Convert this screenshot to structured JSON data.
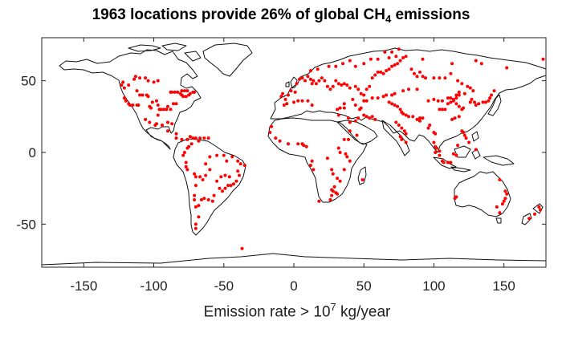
{
  "chart_data": {
    "type": "scatter",
    "title_main": "1963 locations provide 26% of global CH",
    "title_sub": "4",
    "title_tail": " emissions",
    "xlabel_main": "Emission rate > 10",
    "xlabel_sup": "7",
    "xlabel_tail": " kg/year",
    "xlim": [
      -180,
      180
    ],
    "ylim": [
      -80,
      80
    ],
    "xticks": [
      -150,
      -100,
      -50,
      0,
      50,
      100,
      150
    ],
    "yticks": [
      50,
      0,
      -50
    ],
    "grid": false,
    "point_color": "#ff0000",
    "points": [
      [
        -122,
        49
      ],
      [
        -123,
        47
      ],
      [
        -121,
        45
      ],
      [
        -118,
        47
      ],
      [
        -114,
        51
      ],
      [
        -113,
        53
      ],
      [
        -110,
        52
      ],
      [
        -106,
        52
      ],
      [
        -104,
        50
      ],
      [
        -100,
        49
      ],
      [
        -97,
        50
      ],
      [
        -112,
        43
      ],
      [
        -110,
        40
      ],
      [
        -108,
        40
      ],
      [
        -105,
        40
      ],
      [
        -104,
        39
      ],
      [
        -103,
        32
      ],
      [
        -102,
        31
      ],
      [
        -101,
        35
      ],
      [
        -98,
        36
      ],
      [
        -97,
        33
      ],
      [
        -96,
        30
      ],
      [
        -95,
        30
      ],
      [
        -93,
        30
      ],
      [
        -91,
        30
      ],
      [
        -90,
        32
      ],
      [
        -88,
        30
      ],
      [
        -86,
        34
      ],
      [
        -84,
        34
      ],
      [
        -87,
        42
      ],
      [
        -88,
        42
      ],
      [
        -85,
        42
      ],
      [
        -83,
        42
      ],
      [
        -81,
        41
      ],
      [
        -80,
        40
      ],
      [
        -79,
        39
      ],
      [
        -77,
        39
      ],
      [
        -75,
        40
      ],
      [
        -74,
        41
      ],
      [
        -72,
        42
      ],
      [
        -71,
        42
      ],
      [
        -78,
        43
      ],
      [
        -80,
        43
      ],
      [
        -76,
        43
      ],
      [
        -121,
        38
      ],
      [
        -120,
        36
      ],
      [
        -118,
        34
      ],
      [
        -117,
        33
      ],
      [
        -115,
        33
      ],
      [
        -112,
        33
      ],
      [
        -111,
        33
      ],
      [
        -97,
        26
      ],
      [
        -99,
        19
      ],
      [
        -103,
        21
      ],
      [
        -106,
        23
      ],
      [
        -98,
        20
      ],
      [
        -94,
        19
      ],
      [
        -90,
        21
      ],
      [
        -87,
        20
      ],
      [
        -90,
        15
      ],
      [
        -84,
        13
      ],
      [
        -84,
        10
      ],
      [
        -80,
        9
      ],
      [
        -76,
        9
      ],
      [
        -74,
        11
      ],
      [
        -72,
        10
      ],
      [
        -70,
        10
      ],
      [
        -67,
        10
      ],
      [
        -64,
        10
      ],
      [
        -61,
        10
      ],
      [
        -68,
        8
      ],
      [
        -73,
        6
      ],
      [
        -75,
        4
      ],
      [
        -76,
        3
      ],
      [
        -78,
        0
      ],
      [
        -79,
        -2
      ],
      [
        -77,
        -7
      ],
      [
        -77,
        -10
      ],
      [
        -76,
        -12
      ],
      [
        -71,
        -15
      ],
      [
        -70,
        -17
      ],
      [
        -67,
        -17
      ],
      [
        -65,
        -19
      ],
      [
        -63,
        -16
      ],
      [
        -60,
        -12
      ],
      [
        -63,
        -8
      ],
      [
        -60,
        -3
      ],
      [
        -55,
        -2
      ],
      [
        -50,
        -2
      ],
      [
        -48,
        -6
      ],
      [
        -44,
        -3
      ],
      [
        -40,
        -6
      ],
      [
        -38,
        -8
      ],
      [
        -35,
        -9
      ],
      [
        -40,
        -13
      ],
      [
        -39,
        -16
      ],
      [
        -41,
        -20
      ],
      [
        -43,
        -22
      ],
      [
        -45,
        -23
      ],
      [
        -47,
        -23
      ],
      [
        -49,
        -25
      ],
      [
        -51,
        -27
      ],
      [
        -53,
        -25
      ],
      [
        -55,
        -20
      ],
      [
        -52,
        -17
      ],
      [
        -49,
        -16
      ],
      [
        -46,
        -17
      ],
      [
        -57,
        -30
      ],
      [
        -58,
        -34
      ],
      [
        -61,
        -33
      ],
      [
        -64,
        -32
      ],
      [
        -66,
        -33
      ],
      [
        -68,
        -37
      ],
      [
        -70,
        -38
      ],
      [
        -68,
        -45
      ],
      [
        -70,
        -50
      ],
      [
        -71,
        -33
      ],
      [
        -71,
        -30
      ],
      [
        -70,
        -23
      ],
      [
        -70,
        -53
      ],
      [
        -37,
        -67
      ],
      [
        -9,
        39
      ],
      [
        -8,
        41
      ],
      [
        -6,
        37
      ],
      [
        -4,
        40
      ],
      [
        -2,
        43
      ],
      [
        1,
        42
      ],
      [
        2,
        48
      ],
      [
        4,
        51
      ],
      [
        6,
        52
      ],
      [
        8,
        50
      ],
      [
        10,
        53
      ],
      [
        12,
        51
      ],
      [
        13,
        48
      ],
      [
        14,
        50
      ],
      [
        16,
        48
      ],
      [
        18,
        50
      ],
      [
        20,
        52
      ],
      [
        22,
        50
      ],
      [
        24,
        46
      ],
      [
        26,
        44
      ],
      [
        28,
        46
      ],
      [
        30,
        50
      ],
      [
        32,
        48
      ],
      [
        34,
        47
      ],
      [
        36,
        48
      ],
      [
        38,
        47
      ],
      [
        40,
        45
      ],
      [
        44,
        46
      ],
      [
        46,
        44
      ],
      [
        48,
        41
      ],
      [
        50,
        40
      ],
      [
        52,
        44
      ],
      [
        54,
        46
      ],
      [
        56,
        52
      ],
      [
        58,
        54
      ],
      [
        60,
        56
      ],
      [
        62,
        56
      ],
      [
        64,
        55
      ],
      [
        66,
        57
      ],
      [
        68,
        58
      ],
      [
        70,
        60
      ],
      [
        72,
        61
      ],
      [
        74,
        62
      ],
      [
        76,
        64
      ],
      [
        78,
        66
      ],
      [
        73,
        67
      ],
      [
        68,
        66
      ],
      [
        65,
        70
      ],
      [
        70,
        70
      ],
      [
        75,
        72
      ],
      [
        80,
        67
      ],
      [
        84,
        58
      ],
      [
        86,
        55
      ],
      [
        88,
        53
      ],
      [
        90,
        56
      ],
      [
        92,
        53
      ],
      [
        94,
        52
      ],
      [
        100,
        52
      ],
      [
        104,
        52
      ],
      [
        108,
        52
      ],
      [
        112,
        55
      ],
      [
        117,
        50
      ],
      [
        120,
        48
      ],
      [
        124,
        46
      ],
      [
        126,
        45
      ],
      [
        128,
        43
      ],
      [
        122,
        41
      ],
      [
        118,
        40
      ],
      [
        116,
        38
      ],
      [
        114,
        36
      ],
      [
        112,
        35
      ],
      [
        110,
        34
      ],
      [
        108,
        30
      ],
      [
        106,
        30
      ],
      [
        104,
        30
      ],
      [
        113,
        23
      ],
      [
        115,
        24
      ],
      [
        118,
        25
      ],
      [
        120,
        30
      ],
      [
        121,
        31
      ],
      [
        118,
        32
      ],
      [
        116,
        34
      ],
      [
        114,
        37
      ],
      [
        112,
        38
      ],
      [
        110,
        38
      ],
      [
        116,
        40
      ],
      [
        118,
        42
      ],
      [
        106,
        36
      ],
      [
        103,
        36
      ],
      [
        100,
        37
      ],
      [
        96,
        36
      ],
      [
        88,
        44
      ],
      [
        82,
        44
      ],
      [
        78,
        43
      ],
      [
        72,
        41
      ],
      [
        70,
        40
      ],
      [
        66,
        40
      ],
      [
        64,
        39
      ],
      [
        60,
        38
      ],
      [
        56,
        38
      ],
      [
        52,
        36
      ],
      [
        50,
        36
      ],
      [
        48,
        31
      ],
      [
        47,
        30
      ],
      [
        50,
        26
      ],
      [
        52,
        25
      ],
      [
        54,
        24
      ],
      [
        56,
        25
      ],
      [
        58,
        23
      ],
      [
        46,
        24
      ],
      [
        44,
        22
      ],
      [
        40,
        21
      ],
      [
        39,
        24
      ],
      [
        44,
        33
      ],
      [
        42,
        37
      ],
      [
        36,
        34
      ],
      [
        36,
        31
      ],
      [
        33,
        31
      ],
      [
        31,
        30
      ],
      [
        32,
        26
      ],
      [
        13,
        33
      ],
      [
        10,
        36
      ],
      [
        6,
        36
      ],
      [
        3,
        36
      ],
      [
        0,
        35
      ],
      [
        -5,
        34
      ],
      [
        -7,
        33
      ],
      [
        -16,
        18
      ],
      [
        -17,
        14
      ],
      [
        -13,
        10
      ],
      [
        -10,
        8
      ],
      [
        -4,
        6
      ],
      [
        3,
        6
      ],
      [
        6,
        6
      ],
      [
        7,
        5
      ],
      [
        9,
        4
      ],
      [
        13,
        -6
      ],
      [
        12,
        -9
      ],
      [
        14,
        -12
      ],
      [
        24,
        -4
      ],
      [
        27,
        -12
      ],
      [
        28,
        -15
      ],
      [
        31,
        -18
      ],
      [
        33,
        -20
      ],
      [
        29,
        -24
      ],
      [
        27,
        -26
      ],
      [
        28,
        -27
      ],
      [
        30,
        -28
      ],
      [
        31,
        -29
      ],
      [
        27,
        -30
      ],
      [
        26,
        -33
      ],
      [
        18,
        -34
      ],
      [
        36,
        -12
      ],
      [
        40,
        -6
      ],
      [
        38,
        -3
      ],
      [
        37,
        -1
      ],
      [
        33,
        0
      ],
      [
        32,
        3
      ],
      [
        36,
        9
      ],
      [
        39,
        9
      ],
      [
        40,
        15
      ],
      [
        45,
        12
      ],
      [
        49,
        -19
      ],
      [
        68,
        35
      ],
      [
        70,
        34
      ],
      [
        72,
        33
      ],
      [
        74,
        32
      ],
      [
        76,
        30
      ],
      [
        77,
        28
      ],
      [
        78,
        27
      ],
      [
        80,
        26
      ],
      [
        82,
        25
      ],
      [
        85,
        25
      ],
      [
        88,
        23
      ],
      [
        90,
        24
      ],
      [
        92,
        24
      ],
      [
        73,
        21
      ],
      [
        75,
        19
      ],
      [
        77,
        17
      ],
      [
        79,
        15
      ],
      [
        80,
        13
      ],
      [
        76,
        11
      ],
      [
        77,
        9
      ],
      [
        80,
        7
      ],
      [
        90,
        22
      ],
      [
        96,
        17
      ],
      [
        97,
        19
      ],
      [
        100,
        14
      ],
      [
        101,
        13
      ],
      [
        100,
        7
      ],
      [
        101,
        4
      ],
      [
        102,
        3
      ],
      [
        104,
        1
      ],
      [
        106,
        -6
      ],
      [
        107,
        -7
      ],
      [
        110,
        -7
      ],
      [
        112,
        -7
      ],
      [
        104,
        -2
      ],
      [
        101,
        0
      ],
      [
        114,
        -1
      ],
      [
        116,
        -2
      ],
      [
        117,
        5
      ],
      [
        120,
        15
      ],
      [
        121,
        14
      ],
      [
        122,
        12
      ],
      [
        123,
        10
      ],
      [
        125,
        7
      ],
      [
        126,
        35
      ],
      [
        127,
        37
      ],
      [
        129,
        35
      ],
      [
        130,
        33
      ],
      [
        132,
        34
      ],
      [
        135,
        35
      ],
      [
        137,
        35
      ],
      [
        139,
        36
      ],
      [
        140,
        38
      ],
      [
        141,
        40
      ],
      [
        143,
        43
      ],
      [
        130,
        2
      ],
      [
        115,
        -32
      ],
      [
        116,
        -31
      ],
      [
        147,
        -19
      ],
      [
        151,
        -27
      ],
      [
        152,
        -29
      ],
      [
        151,
        -32
      ],
      [
        150,
        -34
      ],
      [
        149,
        -36
      ],
      [
        145,
        -38
      ],
      [
        147,
        -42
      ],
      [
        168,
        -46
      ],
      [
        172,
        -43
      ],
      [
        175,
        -38
      ],
      [
        176,
        -40
      ],
      [
        178,
        65
      ],
      [
        152,
        59
      ],
      [
        134,
        62
      ],
      [
        130,
        64
      ],
      [
        113,
        62
      ],
      [
        92,
        65
      ],
      [
        60,
        65
      ],
      [
        55,
        65
      ],
      [
        50,
        62
      ],
      [
        44,
        60
      ],
      [
        40,
        64
      ],
      [
        35,
        62
      ],
      [
        30,
        60
      ],
      [
        25,
        60
      ],
      [
        17,
        58
      ],
      [
        12,
        57
      ]
    ]
  }
}
